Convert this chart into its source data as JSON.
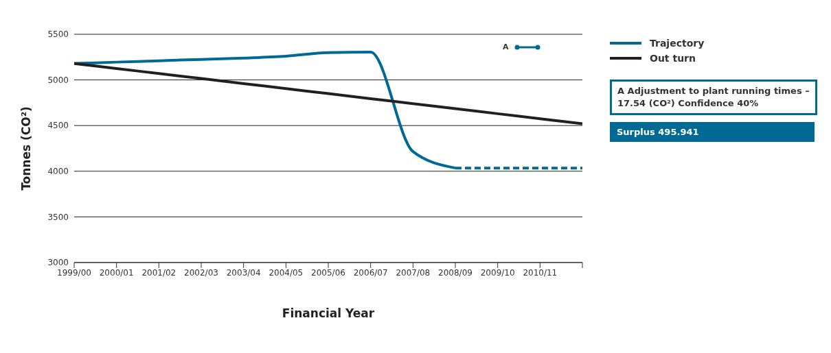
{
  "chart_data": {
    "type": "line",
    "xlabel": "Financial Year",
    "ylabel": "Tonnes (CO²)",
    "categories": [
      "1999/00",
      "2000/01",
      "2001/02",
      "2002/03",
      "2003/04",
      "2004/05",
      "2005/06",
      "2006/07",
      "2007/08",
      "2008/09",
      "2009/10",
      "2010/11",
      null
    ],
    "ylim": [
      3000,
      5500
    ],
    "yticks": [
      3000,
      3500,
      4000,
      4500,
      5000,
      5500
    ],
    "grid": "y",
    "legend": "top right",
    "marker": "none",
    "series": [
      {
        "name": "Trajectory",
        "color": "#006a94",
        "line_style": "solid",
        "values": [
          5180,
          5195,
          5210,
          5225,
          5240,
          5260,
          5300,
          5305,
          4215,
          4035,
          null,
          null,
          null
        ]
      },
      {
        "color": "#006a94",
        "line_style": "dashed",
        "values": [
          null,
          null,
          null,
          null,
          null,
          null,
          null,
          null,
          null,
          4035,
          4035,
          4035,
          4035
        ]
      },
      {
        "name": "Out turn",
        "color": "#231f20",
        "line_style": "solid",
        "values": [
          5180,
          5125,
          5070,
          5015,
          4960,
          4905,
          4850,
          4795,
          4740,
          4685,
          4630,
          4575,
          4520
        ]
      }
    ],
    "annotations": [
      "A",
      "A  Adjustment to plant running times – 17.54 (CO²) Confidence 40%",
      "Surplus 495.941"
    ]
  }
}
